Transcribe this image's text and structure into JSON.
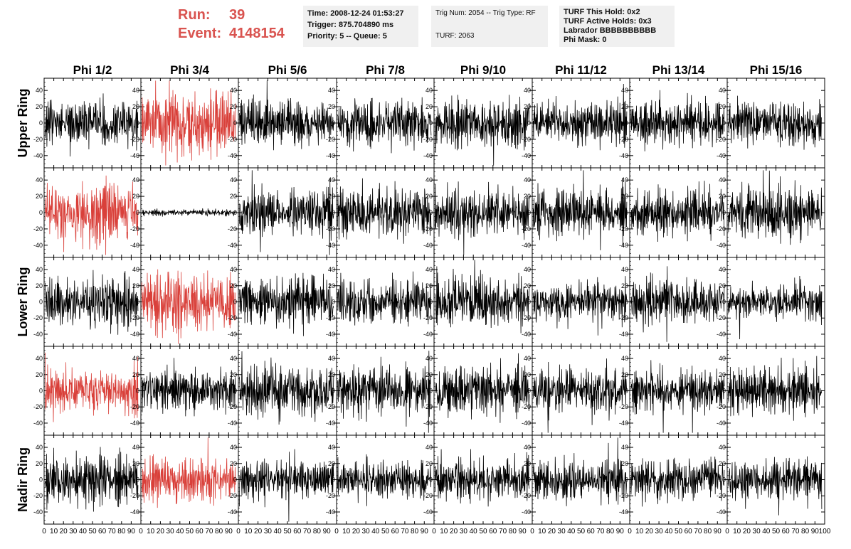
{
  "header": {
    "run_label": "Run:",
    "run_value": "39",
    "event_label": "Event:",
    "event_value": "4148154"
  },
  "info_boxes": [
    {
      "lines": [
        "Time: 2008-12-24 01:53:27",
        "Trigger: 875.704890 ms",
        "Priority: 5 -- Queue: 5"
      ]
    },
    {
      "lines": [
        "Trig Num: 2054 -- Trig Type: RF",
        "",
        "TURF: 2063"
      ]
    },
    {
      "lines": [
        "TURF This Hold: 0x2",
        "TURF Active Holds: 0x3",
        "Labrador BBBBBBBBBB",
        "Phi Mask: 0"
      ]
    }
  ],
  "colors": {
    "trace": "#000000",
    "triggered_trace": "#d9403a",
    "header_text": "#d9534f",
    "info_bg": "#f0f0f0"
  },
  "chart_data": {
    "type": "line",
    "title": "",
    "column_titles": [
      "Phi 1/2",
      "Phi 3/4",
      "Phi 5/6",
      "Phi 7/8",
      "Phi 9/10",
      "Phi 11/12",
      "Phi 13/14",
      "Phi 15/16"
    ],
    "row_titles": [
      "Upper Ring",
      "",
      "Lower Ring",
      "",
      "Nadir Ring"
    ],
    "xlim": [
      0,
      100
    ],
    "ylim": [
      -55,
      55
    ],
    "x_ticks": [
      0,
      10,
      20,
      30,
      40,
      50,
      60,
      70,
      80,
      90,
      100
    ],
    "y_ticks": [
      -40,
      -20,
      0,
      20,
      40
    ],
    "grid": false,
    "samples_per_trace": 260,
    "panels": [
      [
        {
          "c": "black",
          "a": 14,
          "s": 1
        },
        {
          "c": "red",
          "a": 20,
          "s": 2
        },
        {
          "c": "black",
          "a": 13,
          "s": 3
        },
        {
          "c": "black",
          "a": 14,
          "s": 4
        },
        {
          "c": "black",
          "a": 14,
          "s": 5
        },
        {
          "c": "black",
          "a": 12,
          "s": 6
        },
        {
          "c": "black",
          "a": 14,
          "s": 7
        },
        {
          "c": "black",
          "a": 13,
          "s": 8
        }
      ],
      [
        {
          "c": "red",
          "a": 18,
          "s": 9
        },
        {
          "c": "black",
          "a": 2,
          "s": 10
        },
        {
          "c": "black",
          "a": 14,
          "s": 11
        },
        {
          "c": "black",
          "a": 14,
          "s": 12
        },
        {
          "c": "black",
          "a": 14,
          "s": 13
        },
        {
          "c": "black",
          "a": 14,
          "s": 14
        },
        {
          "c": "black",
          "a": 13,
          "s": 15
        },
        {
          "c": "black",
          "a": 15,
          "s": 16
        }
      ],
      [
        {
          "c": "black",
          "a": 15,
          "s": 17
        },
        {
          "c": "red",
          "a": 18,
          "s": 18
        },
        {
          "c": "black",
          "a": 14,
          "s": 19
        },
        {
          "c": "black",
          "a": 14,
          "s": 20
        },
        {
          "c": "black",
          "a": 15,
          "s": 21
        },
        {
          "c": "black",
          "a": 12,
          "s": 22
        },
        {
          "c": "black",
          "a": 13,
          "s": 23
        },
        {
          "c": "black",
          "a": 11,
          "s": 24
        }
      ],
      [
        {
          "c": "red",
          "a": 13,
          "s": 25
        },
        {
          "c": "black",
          "a": 12,
          "s": 26
        },
        {
          "c": "black",
          "a": 15,
          "s": 27
        },
        {
          "c": "black",
          "a": 14,
          "s": 28
        },
        {
          "c": "black",
          "a": 14,
          "s": 29
        },
        {
          "c": "black",
          "a": 13,
          "s": 30
        },
        {
          "c": "black",
          "a": 12,
          "s": 31
        },
        {
          "c": "black",
          "a": 14,
          "s": 32
        }
      ],
      [
        {
          "c": "black",
          "a": 15,
          "s": 33
        },
        {
          "c": "red",
          "a": 13,
          "s": 34
        },
        {
          "c": "black",
          "a": 12,
          "s": 35
        },
        {
          "c": "black",
          "a": 11,
          "s": 36
        },
        {
          "c": "black",
          "a": 12,
          "s": 37
        },
        {
          "c": "black",
          "a": 12,
          "s": 38
        },
        {
          "c": "black",
          "a": 12,
          "s": 39
        },
        {
          "c": "black",
          "a": 13,
          "s": 40
        }
      ]
    ]
  }
}
